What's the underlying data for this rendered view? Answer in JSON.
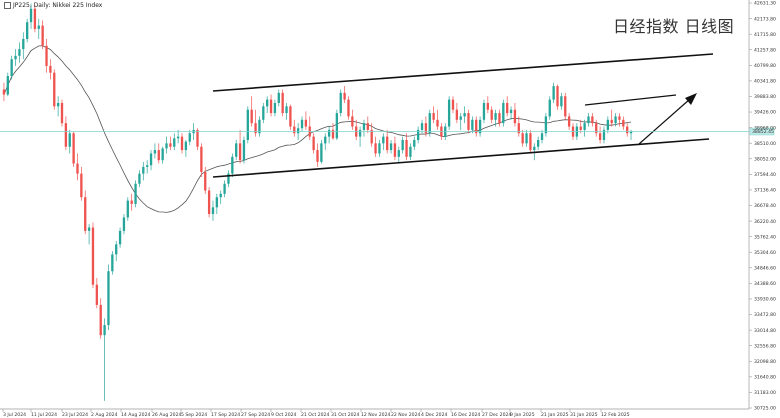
{
  "chart_data": {
    "type": "candlestick",
    "title": "JP225, Daily: Nikkei 225 Index",
    "watermark": "日经指数 日线图",
    "ylim": [
      30725.98,
      42700
    ],
    "yticks": [
      "42631.30",
      "42173.80",
      "41715.80",
      "41257.80",
      "40799.80",
      "40341.80",
      "39883.80",
      "39426.00",
      "38968.00",
      "38510.00",
      "38052.00",
      "37594.40",
      "37136.40",
      "36678.40",
      "36220.40",
      "35762.40",
      "35304.60",
      "34846.60",
      "34388.60",
      "33930.60",
      "33472.80",
      "33014.80",
      "32556.80",
      "32098.80",
      "31640.80",
      "31183.00",
      "30725.00"
    ],
    "xticks": [
      "3 Jul 2024",
      "11 Jul 2024",
      "23 Jul 2024",
      "2 Aug 2024",
      "14 Aug 2024",
      "26 Aug 2024",
      "5 Sep 2024",
      "17 Sep 2024",
      "27 Sep 2024",
      "9 Oct 2024",
      "21 Oct 2024",
      "31 Oct 2024",
      "12 Nov 2024",
      "22 Nov 2024",
      "4 Dec 2024",
      "16 Dec 2024",
      "27 Dec 2024",
      "9 Jan 2025",
      "21 Jan 2025",
      "31 Jan 2025",
      "12 Feb 2025"
    ],
    "last_price": "38852.45",
    "colors": {
      "up": "#26a69a",
      "down": "#ef5350",
      "ma": "#555555",
      "channel": "#111111",
      "price_line": "#7fd4cf"
    },
    "candles": [
      [
        40100,
        40300,
        39750,
        39950
      ],
      [
        39950,
        40600,
        39900,
        40500
      ],
      [
        40500,
        41100,
        40400,
        41000
      ],
      [
        41000,
        41300,
        40800,
        41100
      ],
      [
        41100,
        41500,
        40900,
        41300
      ],
      [
        41300,
        41800,
        41000,
        41600
      ],
      [
        41600,
        42200,
        41500,
        42100
      ],
      [
        42100,
        42650,
        41900,
        42500
      ],
      [
        42500,
        42600,
        41800,
        41900
      ],
      [
        41900,
        42200,
        41600,
        42000
      ],
      [
        42000,
        42150,
        41300,
        41400
      ],
      [
        41400,
        41600,
        40600,
        40800
      ],
      [
        40800,
        41000,
        40400,
        40600
      ],
      [
        40600,
        40700,
        39500,
        39600
      ],
      [
        39600,
        39900,
        39300,
        39700
      ],
      [
        39700,
        39800,
        39000,
        39100
      ],
      [
        39100,
        39300,
        38300,
        38400
      ],
      [
        38400,
        38900,
        38200,
        38800
      ],
      [
        38800,
        38850,
        37800,
        37900
      ],
      [
        37900,
        38200,
        37400,
        37600
      ],
      [
        37600,
        37800,
        36800,
        36900
      ],
      [
        36900,
        37100,
        35800,
        35900
      ],
      [
        35900,
        36100,
        35500,
        36000
      ],
      [
        36000,
        36150,
        34200,
        34300
      ],
      [
        34300,
        34500,
        33600,
        33700
      ],
      [
        33700,
        33900,
        32700,
        32800
      ],
      [
        32800,
        33300,
        30850,
        33100
      ],
      [
        33100,
        34900,
        32950,
        34700
      ],
      [
        34700,
        35300,
        34600,
        35200
      ],
      [
        35200,
        35600,
        35000,
        35500
      ],
      [
        35500,
        36000,
        35400,
        35900
      ],
      [
        35900,
        36400,
        35800,
        36300
      ],
      [
        36300,
        36900,
        36200,
        36800
      ],
      [
        36800,
        37000,
        36500,
        36700
      ],
      [
        36700,
        37400,
        36600,
        37300
      ],
      [
        37300,
        37700,
        37200,
        37600
      ],
      [
        37600,
        37950,
        37400,
        37800
      ],
      [
        37800,
        38000,
        37600,
        37850
      ],
      [
        37850,
        38300,
        37700,
        38200
      ],
      [
        38200,
        38500,
        38050,
        38300
      ],
      [
        38300,
        38500,
        37900,
        38000
      ],
      [
        38000,
        38400,
        37900,
        38350
      ],
      [
        38350,
        38700,
        38200,
        38500
      ],
      [
        38500,
        38700,
        38300,
        38400
      ],
      [
        38400,
        38800,
        38300,
        38650
      ],
      [
        38650,
        38900,
        38500,
        38700
      ],
      [
        38700,
        38800,
        38200,
        38300
      ],
      [
        38300,
        38600,
        38100,
        38550
      ],
      [
        38550,
        38900,
        38450,
        38800
      ],
      [
        38800,
        39100,
        38600,
        38900
      ],
      [
        38900,
        38950,
        38300,
        38400
      ],
      [
        38400,
        38500,
        37500,
        37650
      ],
      [
        37650,
        37800,
        37000,
        37100
      ],
      [
        37100,
        37200,
        36300,
        36400
      ],
      [
        36400,
        36800,
        36200,
        36600
      ],
      [
        36600,
        37000,
        36400,
        36900
      ],
      [
        36900,
        37100,
        36700,
        37000
      ],
      [
        37000,
        37400,
        36900,
        37300
      ],
      [
        37300,
        37700,
        37200,
        37600
      ],
      [
        37600,
        38200,
        37500,
        38100
      ],
      [
        38100,
        38600,
        38000,
        38500
      ],
      [
        38500,
        38900,
        37900,
        38000
      ],
      [
        38000,
        38700,
        37900,
        38600
      ],
      [
        38600,
        39600,
        38500,
        39500
      ],
      [
        39500,
        39900,
        39000,
        39100
      ],
      [
        39100,
        39500,
        38700,
        38800
      ],
      [
        38800,
        39300,
        38700,
        39200
      ],
      [
        39200,
        39700,
        39100,
        39600
      ],
      [
        39600,
        39900,
        39400,
        39800
      ],
      [
        39800,
        39950,
        39300,
        39400
      ],
      [
        39400,
        39800,
        39300,
        39700
      ],
      [
        39700,
        40100,
        39600,
        40000
      ],
      [
        40000,
        40100,
        39300,
        39400
      ],
      [
        39400,
        39700,
        39200,
        39600
      ],
      [
        39600,
        39650,
        38900,
        39000
      ],
      [
        39000,
        39200,
        38700,
        38800
      ],
      [
        38800,
        39100,
        38600,
        38950
      ],
      [
        38950,
        39300,
        38850,
        39200
      ],
      [
        39200,
        39450,
        38900,
        39000
      ],
      [
        39000,
        39300,
        38600,
        38700
      ],
      [
        38700,
        38800,
        38200,
        38300
      ],
      [
        38300,
        38500,
        37800,
        37950
      ],
      [
        37950,
        38600,
        37900,
        38500
      ],
      [
        38500,
        38800,
        38300,
        38700
      ],
      [
        38700,
        39000,
        38500,
        38900
      ],
      [
        38900,
        39100,
        38600,
        38650
      ],
      [
        38650,
        39500,
        38600,
        39400
      ],
      [
        39400,
        40100,
        39300,
        40000
      ],
      [
        40000,
        40200,
        39700,
        39800
      ],
      [
        39800,
        39900,
        39200,
        39300
      ],
      [
        39300,
        39500,
        38900,
        39000
      ],
      [
        39000,
        39200,
        38600,
        38700
      ],
      [
        38700,
        39000,
        38400,
        38900
      ],
      [
        38900,
        39200,
        38700,
        39100
      ],
      [
        39100,
        39300,
        38800,
        38900
      ],
      [
        38900,
        39100,
        38400,
        38500
      ],
      [
        38500,
        38700,
        38100,
        38200
      ],
      [
        38200,
        38600,
        38100,
        38500
      ],
      [
        38500,
        38800,
        38300,
        38700
      ],
      [
        38700,
        38900,
        38200,
        38300
      ],
      [
        38300,
        38600,
        38200,
        38500
      ],
      [
        38500,
        38700,
        38000,
        38100
      ],
      [
        38100,
        38400,
        37900,
        38300
      ],
      [
        38300,
        38700,
        38200,
        38600
      ],
      [
        38600,
        38800,
        38000,
        38100
      ],
      [
        38100,
        38500,
        38000,
        38400
      ],
      [
        38400,
        38700,
        38300,
        38600
      ],
      [
        38600,
        39000,
        38500,
        38900
      ],
      [
        38900,
        39200,
        38800,
        39100
      ],
      [
        39100,
        39300,
        38700,
        38800
      ],
      [
        38800,
        39500,
        38700,
        39400
      ],
      [
        39400,
        39600,
        39100,
        39200
      ],
      [
        39200,
        39500,
        38900,
        39000
      ],
      [
        39000,
        39100,
        38600,
        38700
      ],
      [
        38700,
        39100,
        38600,
        39000
      ],
      [
        39000,
        39900,
        38900,
        39800
      ],
      [
        39800,
        39900,
        39400,
        39500
      ],
      [
        39500,
        39700,
        39100,
        39200
      ],
      [
        39200,
        39400,
        38900,
        39300
      ],
      [
        39300,
        39600,
        39100,
        39400
      ],
      [
        39400,
        39500,
        38800,
        38900
      ],
      [
        38900,
        39300,
        38800,
        39200
      ],
      [
        39200,
        39300,
        38700,
        38800
      ],
      [
        38800,
        39300,
        38700,
        39200
      ],
      [
        39200,
        39800,
        39100,
        39700
      ],
      [
        39700,
        39900,
        39400,
        39500
      ],
      [
        39500,
        39600,
        39100,
        39200
      ],
      [
        39200,
        39500,
        39000,
        39400
      ],
      [
        39400,
        39500,
        39000,
        39100
      ],
      [
        39100,
        39800,
        39000,
        39700
      ],
      [
        39700,
        39900,
        39300,
        39400
      ],
      [
        39400,
        39600,
        39200,
        39500
      ],
      [
        39500,
        39700,
        39000,
        39100
      ],
      [
        39100,
        39300,
        38700,
        38800
      ],
      [
        38800,
        38900,
        38400,
        38500
      ],
      [
        38500,
        38900,
        38400,
        38800
      ],
      [
        38800,
        38900,
        38200,
        38300
      ],
      [
        38300,
        38500,
        38000,
        38400
      ],
      [
        38400,
        38700,
        38300,
        38600
      ],
      [
        38600,
        38900,
        38500,
        38800
      ],
      [
        38800,
        39400,
        38700,
        39300
      ],
      [
        39300,
        39900,
        39200,
        39800
      ],
      [
        39800,
        40300,
        39700,
        40200
      ],
      [
        40200,
        40250,
        39500,
        39600
      ],
      [
        39600,
        40000,
        39500,
        39900
      ],
      [
        39900,
        40000,
        39200,
        39300
      ],
      [
        39300,
        39400,
        38900,
        39000
      ],
      [
        39000,
        39100,
        38600,
        38700
      ],
      [
        38700,
        39100,
        38600,
        39000
      ],
      [
        39000,
        39200,
        38800,
        38900
      ],
      [
        38900,
        39200,
        38700,
        39100
      ],
      [
        39100,
        39400,
        39000,
        39300
      ],
      [
        39300,
        39400,
        39000,
        39100
      ],
      [
        39100,
        39200,
        38700,
        38800
      ],
      [
        38800,
        39000,
        38500,
        38600
      ],
      [
        38600,
        39000,
        38500,
        38900
      ],
      [
        38900,
        39300,
        38800,
        39200
      ],
      [
        39200,
        39500,
        39000,
        39100
      ],
      [
        39100,
        39400,
        39000,
        39300
      ],
      [
        39300,
        39400,
        39000,
        39200
      ],
      [
        39200,
        39300,
        38900,
        39000
      ],
      [
        39000,
        39100,
        38700,
        38800
      ],
      [
        38800,
        38900,
        38600,
        38852
      ]
    ]
  }
}
